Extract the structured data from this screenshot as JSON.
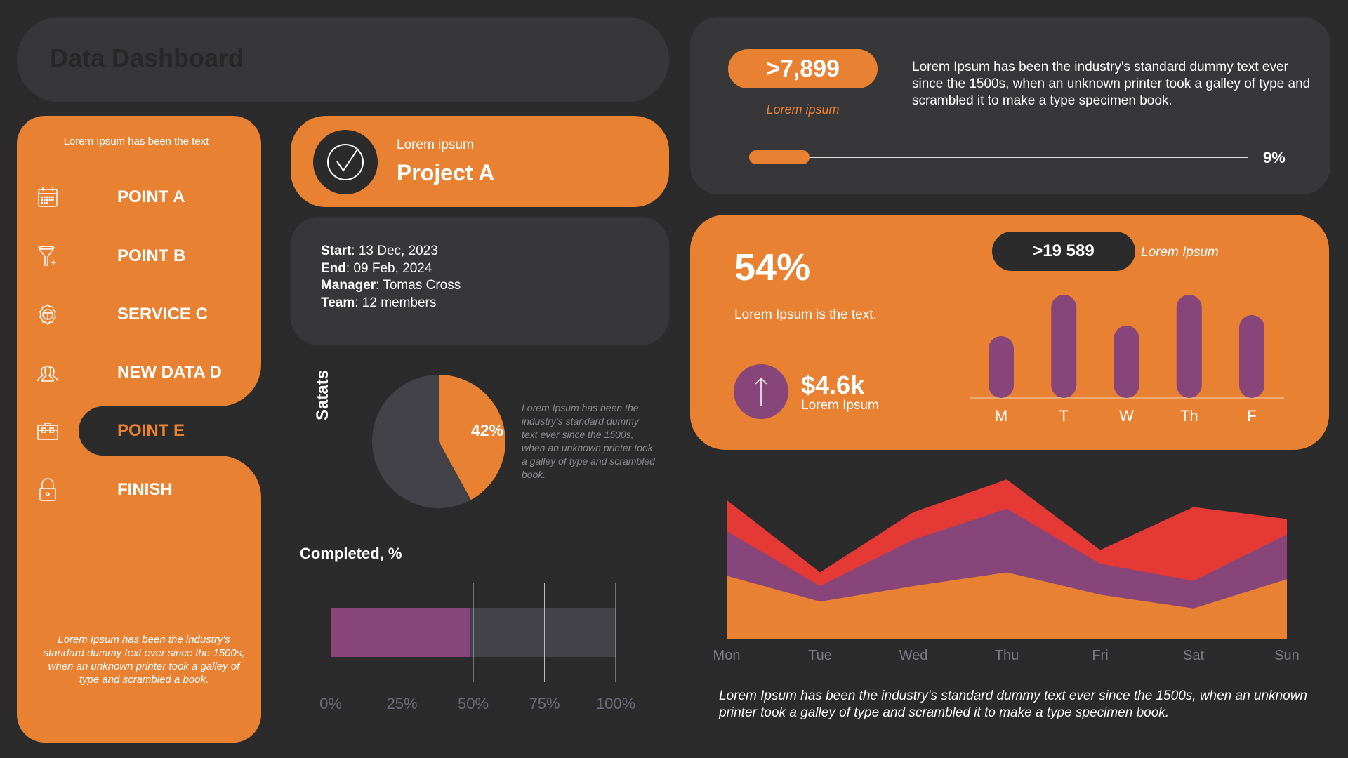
{
  "header": {
    "title": "Data Dashboard"
  },
  "sidebar": {
    "header": "Lorem Ipsum has been the text",
    "items": [
      {
        "label": "POINT A",
        "icon": "calendar-icon"
      },
      {
        "label": "POINT B",
        "icon": "funnel-plus-icon"
      },
      {
        "label": "SERVICE C",
        "icon": "gear-icon"
      },
      {
        "label": "NEW DATA D",
        "icon": "users-icon"
      },
      {
        "label": "POINT E",
        "icon": "briefcase-icon",
        "active": true
      },
      {
        "label": "FINISH",
        "icon": "lock-icon"
      }
    ],
    "footer": "Lorem Ipsum has been the industry's standard dummy text ever since the 1500s, when an unknown printer took a galley of type and scrambled  a book."
  },
  "project": {
    "subtitle": "Lorem ipsum",
    "title": "Project A",
    "icon": "check-circle-icon"
  },
  "info": {
    "start_label": "Start",
    "start": ": 13 Dec, 2023",
    "end_label": "End",
    "end": ": 09 Feb, 2024",
    "manager_label": "Manager",
    "manager": ": Tomas Cross",
    "team_label": "Team",
    "team": ": 12 members"
  },
  "stats": {
    "title": "Satats",
    "description": "Lorem Ipsum has been the industry's standard dummy text ever since the 1500s, when an unknown printer took a galley of type and scrambled book."
  },
  "kpi": {
    "value": ">7,899",
    "sublabel": "Lorem ipsum",
    "paragraph": "Lorem Ipsum has been the industry's standard dummy text ever since the 1500s, when an unknown printer took a galley of type and scrambled it to make a type specimen book.",
    "progress_label": "9%",
    "progress": 9
  },
  "summary": {
    "percent": "54%",
    "text": "Lorem Ipsum is the text.",
    "money": "$4.6k",
    "money_label": "Lorem Ipsum",
    "pill": ">19 589",
    "pill_label": "Lorem Ipsum",
    "icon": "arrow-up-icon"
  },
  "bottom_paragraph": "Lorem Ipsum has been the industry's standard dummy text ever since the 1500s, when an unknown printer took a galley of type and scrambled it to make a type specimen book.",
  "colors": {
    "background": "#2b2b2b",
    "card": "#373739",
    "orange": "#e98133",
    "purple": "#87457a",
    "red": "#e53935",
    "gray": "#434248"
  },
  "chart_data": [
    {
      "type": "pie",
      "values": [
        42,
        58
      ],
      "labels": [
        "42%",
        ""
      ],
      "colors": [
        "#e98133",
        "#434248"
      ]
    },
    {
      "type": "bar",
      "orientation": "horizontal",
      "title": "Completed, %",
      "value": 49,
      "xlim": [
        0,
        100
      ],
      "tick_labels": [
        "0%",
        "25%",
        "50%",
        "75%",
        "100%"
      ],
      "grid": true
    },
    {
      "type": "bar",
      "categories": [
        "M",
        "T",
        "W",
        "Th",
        "F"
      ],
      "values": [
        88,
        147,
        103,
        147,
        118
      ],
      "color": "#87457a"
    },
    {
      "type": "area",
      "stacked": true,
      "categories": [
        "Mon",
        "Tue",
        "Wed",
        "Thu",
        "Fri",
        "Sat",
        "Sun"
      ],
      "series": [
        {
          "values": [
            37,
            22,
            31,
            39,
            26,
            18,
            35
          ],
          "color": "#e98133"
        },
        {
          "values": [
            26,
            9,
            27,
            37,
            18,
            16,
            26
          ],
          "color": "#87457a"
        },
        {
          "values": [
            18,
            8,
            16,
            17,
            8,
            43,
            9
          ],
          "color": "#e53935"
        }
      ],
      "ylim": [
        0,
        100
      ]
    }
  ]
}
